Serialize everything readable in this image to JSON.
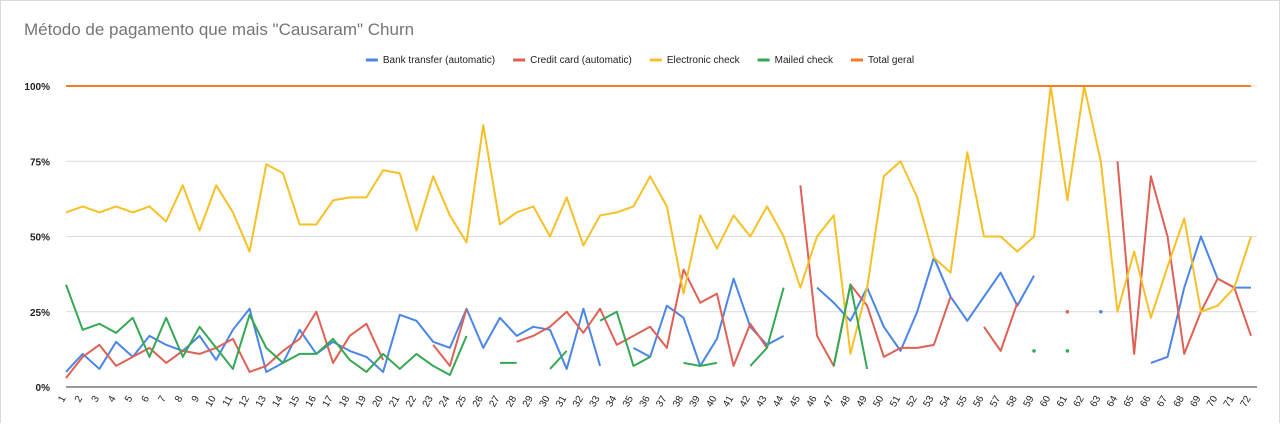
{
  "chart_data": {
    "type": "line",
    "title": "Método de pagamento que mais \"Causaram\" Churn",
    "xlabel": "",
    "ylabel": "",
    "ylim": [
      0,
      100
    ],
    "y_ticks": [
      "0%",
      "25%",
      "50%",
      "75%",
      "100%"
    ],
    "grid": true,
    "legend_position": "top",
    "x": [
      1,
      2,
      3,
      4,
      5,
      6,
      7,
      8,
      9,
      10,
      11,
      12,
      13,
      14,
      15,
      16,
      17,
      18,
      19,
      20,
      21,
      22,
      23,
      24,
      25,
      26,
      27,
      28,
      29,
      30,
      31,
      32,
      33,
      34,
      35,
      36,
      37,
      38,
      39,
      40,
      41,
      42,
      43,
      44,
      45,
      46,
      47,
      48,
      49,
      50,
      51,
      52,
      53,
      54,
      55,
      56,
      57,
      58,
      59,
      60,
      61,
      62,
      63,
      64,
      65,
      66,
      67,
      68,
      69,
      70,
      71,
      72
    ],
    "series": [
      {
        "name": "Bank transfer (automatic)",
        "color": "#4a86e8",
        "values": [
          5,
          11,
          6,
          15,
          10,
          17,
          14,
          12,
          17,
          9,
          19,
          26,
          5,
          8,
          19,
          11,
          15,
          12,
          10,
          5,
          24,
          22,
          15,
          13,
          26,
          13,
          23,
          17,
          20,
          19,
          6,
          26,
          7,
          null,
          13,
          10,
          27,
          23,
          7,
          16,
          36,
          20,
          14,
          17,
          null,
          33,
          28,
          22,
          33,
          20,
          12,
          25,
          43,
          30,
          22,
          30,
          38,
          27,
          37,
          null,
          null,
          null,
          25,
          null,
          null,
          8,
          10,
          33,
          50,
          36,
          33,
          33
        ]
      },
      {
        "name": "Credit card (automatic)",
        "color": "#e06055",
        "values": [
          3,
          10,
          14,
          7,
          10,
          13,
          8,
          12,
          11,
          13,
          16,
          5,
          7,
          12,
          16,
          25,
          8,
          17,
          21,
          9,
          null,
          null,
          14,
          7,
          26,
          null,
          null,
          15,
          17,
          20,
          25,
          18,
          26,
          14,
          17,
          20,
          13,
          39,
          28,
          31,
          7,
          21,
          13,
          null,
          67,
          17,
          7,
          34,
          27,
          10,
          13,
          13,
          14,
          30,
          null,
          20,
          12,
          28,
          null,
          null,
          25,
          null,
          null,
          75,
          11,
          70,
          50,
          11,
          25,
          36,
          33,
          17
        ]
      },
      {
        "name": "Electronic check",
        "color": "#f6c026",
        "values": [
          58,
          60,
          58,
          60,
          58,
          60,
          55,
          67,
          52,
          67,
          58,
          45,
          74,
          71,
          54,
          54,
          62,
          63,
          63,
          72,
          71,
          52,
          70,
          57,
          48,
          87,
          54,
          58,
          60,
          50,
          63,
          47,
          57,
          58,
          60,
          70,
          60,
          31,
          57,
          46,
          57,
          50,
          60,
          50,
          33,
          50,
          57,
          11,
          33,
          70,
          75,
          63,
          43,
          38,
          78,
          50,
          50,
          45,
          50,
          100,
          62,
          100,
          75,
          25,
          45,
          23,
          40,
          56,
          25,
          27,
          33,
          50
        ]
      },
      {
        "name": "Mailed check",
        "color": "#34a853",
        "values": [
          34,
          19,
          21,
          18,
          23,
          10,
          23,
          10,
          20,
          13,
          6,
          24,
          13,
          8,
          11,
          11,
          16,
          9,
          5,
          11,
          6,
          11,
          7,
          4,
          17,
          null,
          8,
          8,
          null,
          6,
          12,
          null,
          22,
          25,
          7,
          10,
          null,
          8,
          7,
          8,
          null,
          7,
          13,
          33,
          null,
          null,
          7,
          34,
          6,
          null,
          null,
          null,
          null,
          null,
          null,
          null,
          null,
          null,
          12,
          null,
          12,
          null,
          null,
          null,
          null,
          null,
          null,
          null,
          null,
          null,
          null,
          null
        ]
      },
      {
        "name": "Total geral",
        "color": "#f47e28",
        "values": [
          100,
          100,
          100,
          100,
          100,
          100,
          100,
          100,
          100,
          100,
          100,
          100,
          100,
          100,
          100,
          100,
          100,
          100,
          100,
          100,
          100,
          100,
          100,
          100,
          100,
          100,
          100,
          100,
          100,
          100,
          100,
          100,
          100,
          100,
          100,
          100,
          100,
          100,
          100,
          100,
          100,
          100,
          100,
          100,
          100,
          100,
          100,
          100,
          100,
          100,
          100,
          100,
          100,
          100,
          100,
          100,
          100,
          100,
          100,
          100,
          100,
          100,
          100,
          100,
          100,
          100,
          100,
          100,
          100,
          100,
          100,
          100
        ]
      }
    ]
  }
}
